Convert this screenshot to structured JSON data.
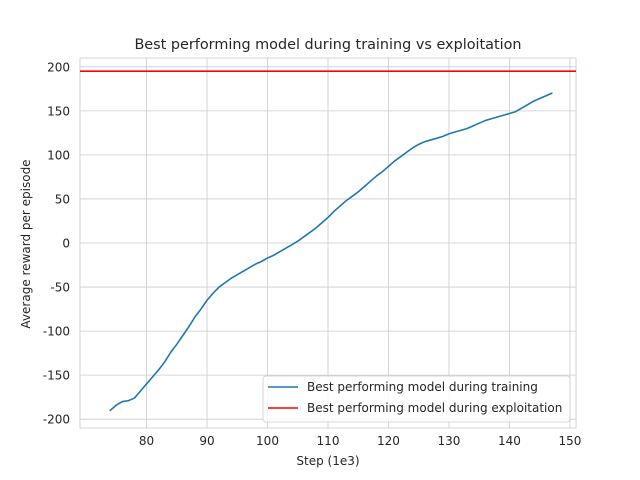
{
  "chart_data": {
    "type": "line",
    "title": "Best performing model during training vs exploitation",
    "xlabel": "Step (1e3)",
    "ylabel": "Average reward per episode",
    "xlim": [
      69,
      151
    ],
    "ylim": [
      -210,
      210
    ],
    "xticks": [
      80,
      90,
      100,
      110,
      120,
      130,
      140,
      150
    ],
    "yticks": [
      -200,
      -150,
      -100,
      -50,
      0,
      50,
      100,
      150,
      200
    ],
    "grid": true,
    "legend_position": "lower-right",
    "series": [
      {
        "name": "Best performing model during training",
        "kind": "line",
        "color": "#1f77b4",
        "x": [
          74,
          75,
          76,
          77,
          78,
          79,
          80,
          81,
          82,
          83,
          84,
          85,
          86,
          87,
          88,
          89,
          90,
          91,
          92,
          93,
          94,
          95,
          96,
          97,
          98,
          99,
          100,
          101,
          102,
          103,
          104,
          105,
          106,
          107,
          108,
          109,
          110,
          111,
          112,
          113,
          114,
          115,
          116,
          117,
          118,
          119,
          120,
          121,
          122,
          123,
          124,
          125,
          126,
          127,
          128,
          129,
          130,
          131,
          132,
          133,
          134,
          135,
          136,
          137,
          138,
          139,
          140,
          141,
          142,
          143,
          144,
          145,
          146,
          147
        ],
        "y": [
          -190,
          -184,
          -180,
          -179,
          -176,
          -168,
          -160,
          -152,
          -144,
          -135,
          -124,
          -115,
          -105,
          -95,
          -84,
          -75,
          -65,
          -57,
          -50,
          -45,
          -40,
          -36,
          -32,
          -28,
          -24,
          -21,
          -17,
          -14,
          -10,
          -6,
          -2,
          2,
          7,
          12,
          17,
          23,
          29,
          36,
          42,
          48,
          53,
          58,
          64,
          70,
          76,
          81,
          87,
          93,
          98,
          103,
          108,
          112,
          115,
          117,
          119,
          121,
          124,
          126,
          128,
          130,
          133,
          136,
          139,
          141,
          143,
          145,
          147,
          149,
          153,
          157,
          161,
          164,
          167,
          170
        ]
      },
      {
        "name": "Best performing model during exploitation",
        "kind": "hline",
        "color": "#ff0000",
        "y": 195
      }
    ]
  }
}
